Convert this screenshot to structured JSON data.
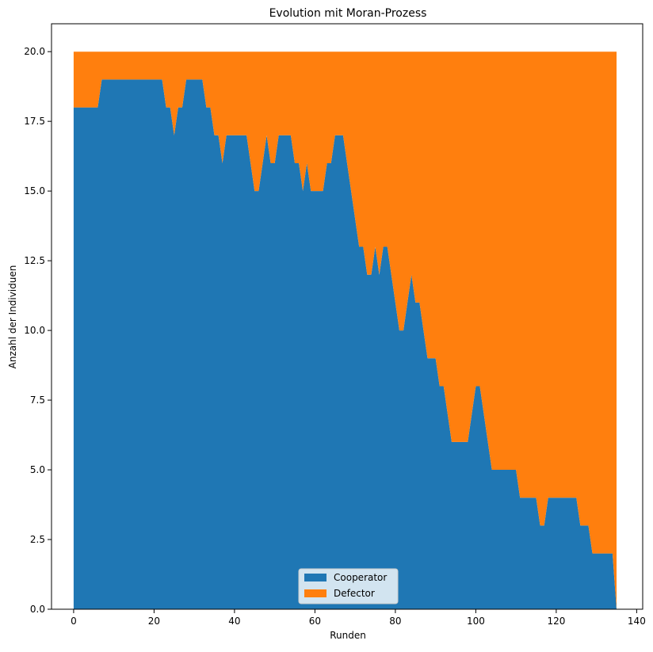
{
  "chart_data": {
    "type": "area",
    "stacked": true,
    "title": "Evolution mit Moran-Prozess",
    "xlabel": "Runden",
    "ylabel": "Anzahl der Individuen",
    "xlim": [
      -5.5,
      141.5
    ],
    "ylim": [
      0,
      21
    ],
    "xticks": [
      0,
      20,
      40,
      60,
      80,
      100,
      120,
      140
    ],
    "yticks": [
      0.0,
      2.5,
      5.0,
      7.5,
      10.0,
      12.5,
      15.0,
      17.5,
      20.0
    ],
    "ytick_labels": [
      "0.0",
      "2.5",
      "5.0",
      "7.5",
      "10.0",
      "12.5",
      "15.0",
      "17.5",
      "20.0"
    ],
    "legend": "lower-center",
    "total": 20,
    "x": [
      0,
      1,
      2,
      3,
      4,
      5,
      6,
      7,
      8,
      9,
      10,
      11,
      12,
      13,
      14,
      15,
      16,
      17,
      18,
      19,
      20,
      21,
      22,
      23,
      24,
      25,
      26,
      27,
      28,
      29,
      30,
      31,
      32,
      33,
      34,
      35,
      36,
      37,
      38,
      39,
      40,
      41,
      42,
      43,
      44,
      45,
      46,
      47,
      48,
      49,
      50,
      51,
      52,
      53,
      54,
      55,
      56,
      57,
      58,
      59,
      60,
      61,
      62,
      63,
      64,
      65,
      66,
      67,
      68,
      69,
      70,
      71,
      72,
      73,
      74,
      75,
      76,
      77,
      78,
      79,
      80,
      81,
      82,
      83,
      84,
      85,
      86,
      87,
      88,
      89,
      90,
      91,
      92,
      93,
      94,
      95,
      96,
      97,
      98,
      99,
      100,
      101,
      102,
      103,
      104,
      105,
      106,
      107,
      108,
      109,
      110,
      111,
      112,
      113,
      114,
      115,
      116,
      117,
      118,
      119,
      120,
      121,
      122,
      123,
      124,
      125,
      126,
      127,
      128,
      129,
      130,
      131,
      132,
      133,
      134,
      135
    ],
    "series": [
      {
        "name": "Cooperator",
        "color": "#1f77b4",
        "values": [
          18,
          18,
          18,
          18,
          18,
          18,
          18,
          19,
          19,
          19,
          19,
          19,
          19,
          19,
          19,
          19,
          19,
          19,
          19,
          19,
          19,
          19,
          19,
          18,
          18,
          17,
          18,
          18,
          19,
          19,
          19,
          19,
          19,
          18,
          18,
          17,
          17,
          16,
          17,
          17,
          17,
          17,
          17,
          17,
          16,
          15,
          15,
          16,
          17,
          16,
          16,
          17,
          17,
          17,
          17,
          16,
          16,
          15,
          16,
          15,
          15,
          15,
          15,
          16,
          16,
          17,
          17,
          17,
          16,
          15,
          14,
          13,
          13,
          12,
          12,
          13,
          12,
          13,
          13,
          12,
          11,
          10,
          10,
          11,
          12,
          11,
          11,
          10,
          9,
          9,
          9,
          8,
          8,
          7,
          6,
          6,
          6,
          6,
          6,
          7,
          8,
          8,
          7,
          6,
          5,
          5,
          5,
          5,
          5,
          5,
          5,
          4,
          4,
          4,
          4,
          4,
          3,
          3,
          4,
          4,
          4,
          4,
          4,
          4,
          4,
          4,
          3,
          3,
          3,
          2,
          2,
          2,
          2,
          2,
          2,
          0
        ]
      },
      {
        "name": "Defector",
        "color": "#ff7f0e",
        "values": [
          2,
          2,
          2,
          2,
          2,
          2,
          2,
          1,
          1,
          1,
          1,
          1,
          1,
          1,
          1,
          1,
          1,
          1,
          1,
          1,
          1,
          1,
          1,
          2,
          2,
          3,
          2,
          2,
          1,
          1,
          1,
          1,
          1,
          2,
          2,
          3,
          3,
          4,
          3,
          3,
          3,
          3,
          3,
          3,
          4,
          5,
          5,
          4,
          3,
          4,
          4,
          3,
          3,
          3,
          3,
          4,
          4,
          5,
          4,
          5,
          5,
          5,
          5,
          4,
          4,
          3,
          3,
          3,
          4,
          5,
          6,
          7,
          7,
          8,
          8,
          7,
          8,
          7,
          7,
          8,
          9,
          10,
          10,
          9,
          8,
          9,
          9,
          10,
          11,
          11,
          11,
          12,
          12,
          13,
          14,
          14,
          14,
          14,
          14,
          13,
          12,
          12,
          13,
          14,
          15,
          15,
          15,
          15,
          15,
          15,
          15,
          16,
          16,
          16,
          16,
          16,
          17,
          17,
          16,
          16,
          16,
          16,
          16,
          16,
          16,
          16,
          17,
          17,
          17,
          18,
          18,
          18,
          18,
          18,
          18,
          20
        ]
      }
    ]
  }
}
